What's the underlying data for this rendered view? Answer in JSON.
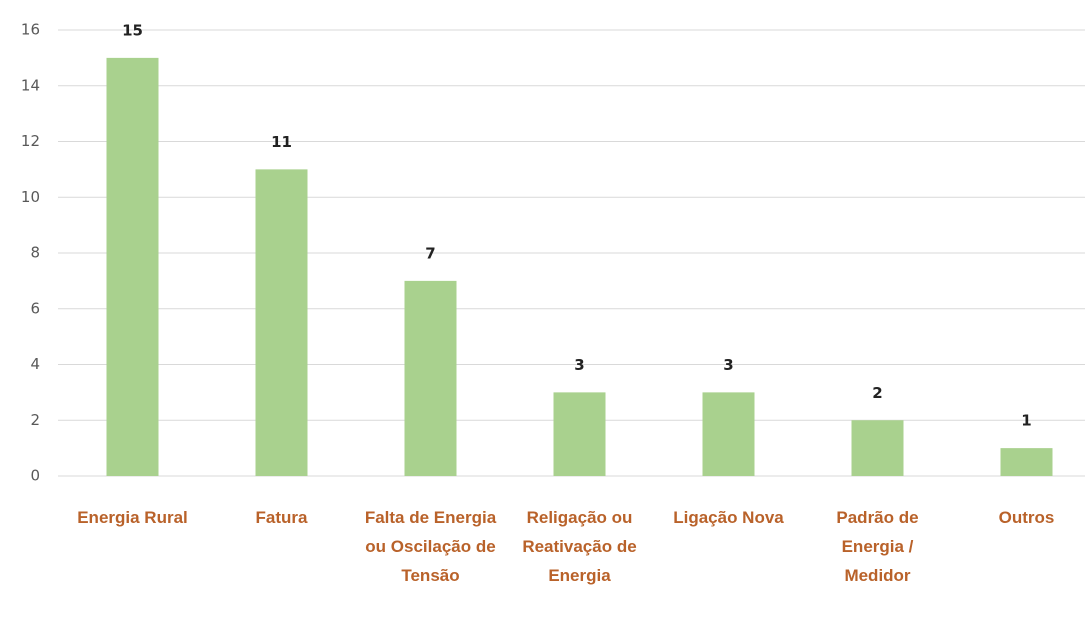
{
  "chart_data": {
    "type": "bar",
    "categories": [
      "Energia Rural",
      "Fatura",
      "Falta de Energia ou Oscilação de Tensão",
      "Religação ou Reativação de Energia",
      "Ligação Nova",
      "Padrão de Energia / Medidor",
      "Outros"
    ],
    "values": [
      15,
      11,
      7,
      3,
      3,
      2,
      1
    ],
    "color": "#a9d18e",
    "ylim": [
      0,
      16
    ],
    "yticks": [
      0,
      2,
      4,
      6,
      8,
      10,
      12,
      14,
      16
    ],
    "grid": true
  }
}
